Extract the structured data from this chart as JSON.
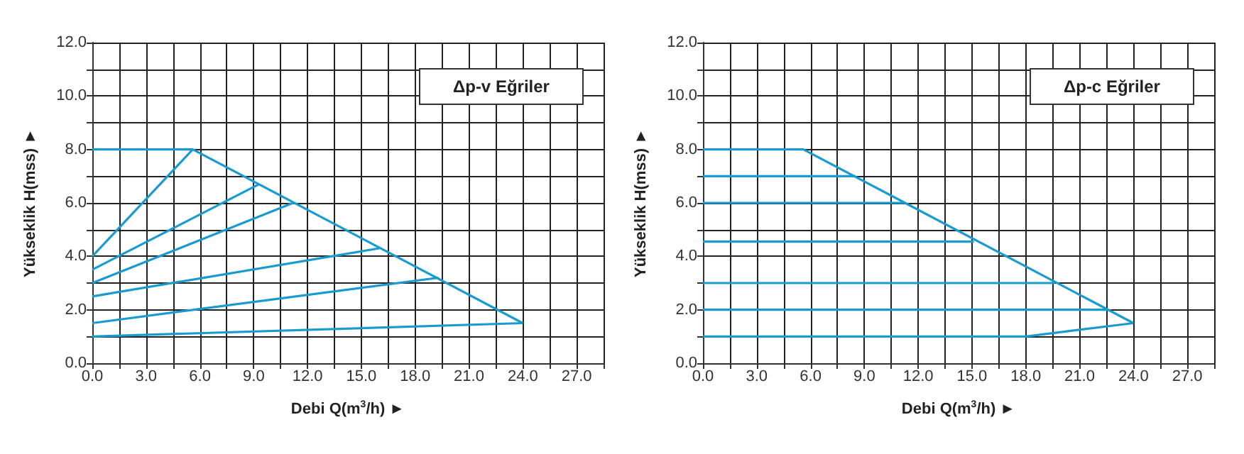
{
  "chart_data": [
    {
      "type": "line",
      "xlabel": "Debi Q(m$^{3}$/h) ►",
      "ylabel": "Yükseklik H(mss) ►",
      "annotations": [
        "Δp-v Eğriler"
      ],
      "xlim": [
        0,
        28.5
      ],
      "ylim": [
        0,
        12
      ],
      "xticks": [
        {
          "value": 0,
          "label": "0.0"
        },
        {
          "value": 1.5,
          "label": null
        },
        {
          "value": 3,
          "label": "3.0"
        },
        {
          "value": 4.5,
          "label": null
        },
        {
          "value": 6,
          "label": "6.0"
        },
        {
          "value": 7.5,
          "label": null
        },
        {
          "value": 9,
          "label": "9.0"
        },
        {
          "value": 10.5,
          "label": null
        },
        {
          "value": 12,
          "label": "12.0"
        },
        {
          "value": 13.5,
          "label": null
        },
        {
          "value": 15,
          "label": "15.0"
        },
        {
          "value": 16.5,
          "label": null
        },
        {
          "value": 18,
          "label": "18.0"
        },
        {
          "value": 19.5,
          "label": null
        },
        {
          "value": 21,
          "label": "21.0"
        },
        {
          "value": 22.5,
          "label": null
        },
        {
          "value": 24,
          "label": "24.0"
        },
        {
          "value": 25.5,
          "label": null
        },
        {
          "value": 27,
          "label": "27.0"
        },
        {
          "value": 28.5,
          "label": null
        }
      ],
      "yticks": [
        {
          "value": 0,
          "label": "0.0"
        },
        {
          "value": 1,
          "label": null
        },
        {
          "value": 2,
          "label": "2.0"
        },
        {
          "value": 3,
          "label": null
        },
        {
          "value": 4,
          "label": "4.0"
        },
        {
          "value": 5,
          "label": null
        },
        {
          "value": 6,
          "label": "6.0"
        },
        {
          "value": 7,
          "label": null
        },
        {
          "value": 8,
          "label": "8.0"
        },
        {
          "value": 9,
          "label": null
        },
        {
          "value": 10,
          "label": "10.0"
        },
        {
          "value": 11,
          "label": null
        },
        {
          "value": 12,
          "label": "12.0"
        }
      ],
      "grid": true,
      "marker": "none",
      "line_style": "solid",
      "series": [
        {
          "color": "#1a9bd0",
          "x": [
            0,
            5.6,
            24
          ],
          "values": [
            8,
            8,
            1.5
          ]
        },
        {
          "color": "#1a9bd0",
          "x": [
            0,
            5.6
          ],
          "values": [
            4,
            8
          ]
        },
        {
          "color": "#1a9bd0",
          "x": [
            0,
            9.3
          ],
          "values": [
            3.5,
            6.7
          ]
        },
        {
          "color": "#1a9bd0",
          "x": [
            0,
            11.2
          ],
          "values": [
            3,
            6
          ]
        },
        {
          "color": "#1a9bd0",
          "x": [
            0,
            16
          ],
          "values": [
            2.5,
            4.3
          ]
        },
        {
          "color": "#1a9bd0",
          "x": [
            0,
            19.3
          ],
          "values": [
            1.5,
            3.2
          ]
        },
        {
          "color": "#1a9bd0",
          "x": [
            0,
            24
          ],
          "values": [
            1,
            1.5
          ]
        }
      ]
    },
    {
      "type": "line",
      "xlabel": "Debi Q(m$^{3}$/h) ►",
      "ylabel": "Yükseklik H(mss) ►",
      "annotations": [
        "Δp-c Eğriler"
      ],
      "xlim": [
        0,
        28.5
      ],
      "ylim": [
        0,
        12
      ],
      "xticks": [
        {
          "value": 0,
          "label": "0.0"
        },
        {
          "value": 1.5,
          "label": null
        },
        {
          "value": 3,
          "label": "3.0"
        },
        {
          "value": 4.5,
          "label": null
        },
        {
          "value": 6,
          "label": "6.0"
        },
        {
          "value": 7.5,
          "label": null
        },
        {
          "value": 9,
          "label": "9.0"
        },
        {
          "value": 10.5,
          "label": null
        },
        {
          "value": 12,
          "label": "12.0"
        },
        {
          "value": 13.5,
          "label": null
        },
        {
          "value": 15,
          "label": "15.0"
        },
        {
          "value": 16.5,
          "label": null
        },
        {
          "value": 18,
          "label": "18.0"
        },
        {
          "value": 19.5,
          "label": null
        },
        {
          "value": 21,
          "label": "21.0"
        },
        {
          "value": 22.5,
          "label": null
        },
        {
          "value": 24,
          "label": "24.0"
        },
        {
          "value": 25.5,
          "label": null
        },
        {
          "value": 27,
          "label": "27.0"
        },
        {
          "value": 28.5,
          "label": null
        }
      ],
      "yticks": [
        {
          "value": 0,
          "label": "0.0"
        },
        {
          "value": 1,
          "label": null
        },
        {
          "value": 2,
          "label": "2.0"
        },
        {
          "value": 3,
          "label": null
        },
        {
          "value": 4,
          "label": "4.0"
        },
        {
          "value": 5,
          "label": null
        },
        {
          "value": 6,
          "label": "6.0"
        },
        {
          "value": 7,
          "label": null
        },
        {
          "value": 8,
          "label": "8.0"
        },
        {
          "value": 9,
          "label": null
        },
        {
          "value": 10,
          "label": "10.0"
        },
        {
          "value": 11,
          "label": null
        },
        {
          "value": 12,
          "label": "12.0"
        }
      ],
      "grid": true,
      "marker": "none",
      "line_style": "solid",
      "series": [
        {
          "color": "#1a9bd0",
          "x": [
            0,
            5.6,
            24
          ],
          "values": [
            8,
            8,
            1.5
          ]
        },
        {
          "color": "#1a9bd0",
          "x": [
            0,
            8.5
          ],
          "values": [
            7,
            7
          ]
        },
        {
          "color": "#1a9bd0",
          "x": [
            0,
            11.2
          ],
          "values": [
            6,
            6
          ]
        },
        {
          "color": "#1a9bd0",
          "x": [
            0,
            15.1
          ],
          "values": [
            4.55,
            4.55
          ]
        },
        {
          "color": "#1a9bd0",
          "x": [
            0,
            19.6
          ],
          "values": [
            3,
            3
          ]
        },
        {
          "color": "#1a9bd0",
          "x": [
            0,
            22.6
          ],
          "values": [
            2,
            2
          ]
        },
        {
          "color": "#1a9bd0",
          "x": [
            0,
            18,
            24
          ],
          "values": [
            1,
            1,
            1.5
          ]
        }
      ]
    }
  ]
}
